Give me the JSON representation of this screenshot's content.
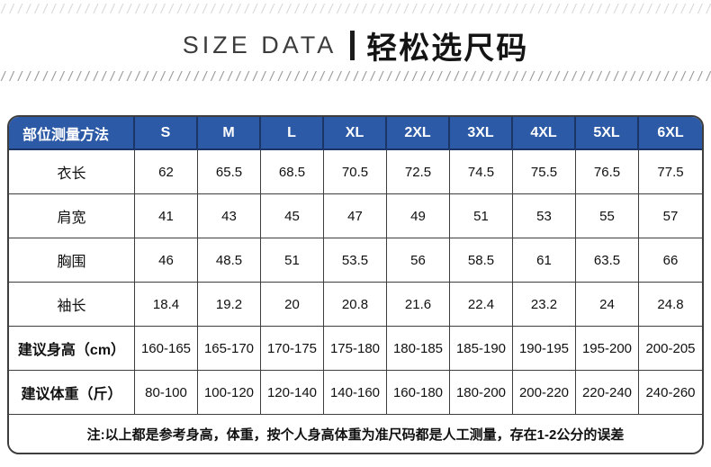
{
  "title": {
    "en": "SIZE DATA",
    "zh": "轻松选尺码"
  },
  "table": {
    "header": [
      "部位测量方法",
      "S",
      "M",
      "L",
      "XL",
      "2XL",
      "3XL",
      "4XL",
      "5XL",
      "6XL"
    ],
    "rows": [
      {
        "label": "衣长",
        "label_bold": false,
        "values": [
          "62",
          "65.5",
          "68.5",
          "70.5",
          "72.5",
          "74.5",
          "75.5",
          "76.5",
          "77.5"
        ]
      },
      {
        "label": "肩宽",
        "label_bold": false,
        "values": [
          "41",
          "43",
          "45",
          "47",
          "49",
          "51",
          "53",
          "55",
          "57"
        ]
      },
      {
        "label": "胸围",
        "label_bold": false,
        "values": [
          "46",
          "48.5",
          "51",
          "53.5",
          "56",
          "58.5",
          "61",
          "63.5",
          "66"
        ]
      },
      {
        "label": "袖长",
        "label_bold": false,
        "values": [
          "18.4",
          "19.2",
          "20",
          "20.8",
          "21.6",
          "22.4",
          "23.2",
          "24",
          "24.8"
        ]
      },
      {
        "label": "建议身高（cm）",
        "label_bold": true,
        "values": [
          "160-165",
          "165-170",
          "170-175",
          "175-180",
          "180-185",
          "185-190",
          "190-195",
          "195-200",
          "200-205"
        ]
      },
      {
        "label": "建议体重（斤）",
        "label_bold": true,
        "values": [
          "80-100",
          "100-120",
          "120-140",
          "140-160",
          "160-180",
          "180-200",
          "200-220",
          "220-240",
          "240-260"
        ]
      }
    ],
    "note": "注:以上都是参考身高，体重，按个人身高体重为准尺码都是人工测量，存在1-2公分的误差"
  },
  "colors": {
    "header_bg": "#2d5aa6",
    "header_divider": "#1b3566",
    "table_border": "#3e3e3e",
    "hatch_dark": "#9b9b9b",
    "hatch_light": "#d9d9d9",
    "title_text": "#141414"
  }
}
